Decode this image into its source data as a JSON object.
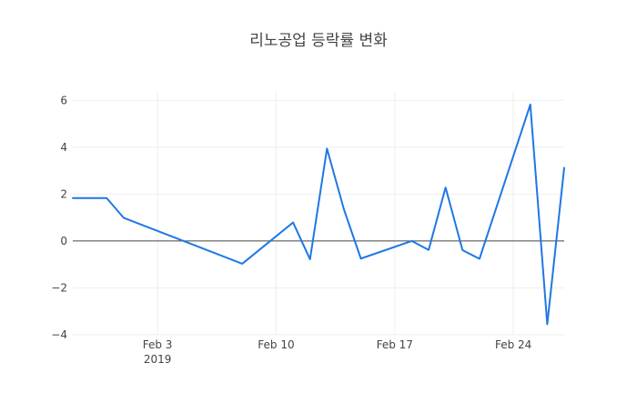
{
  "chart_data": {
    "type": "line",
    "title": "리노공업 등락률 변화",
    "x_tick_labels": [
      "Feb 3",
      "Feb 10",
      "Feb 17",
      "Feb 24"
    ],
    "x_tick_year": "2019",
    "y_ticks": [
      6,
      4,
      2,
      0,
      -2,
      -4
    ],
    "y_tick_labels": [
      "6",
      "4",
      "2",
      "0",
      "−2",
      "−4"
    ],
    "xlim": [
      "2019-01-29",
      "2019-02-27"
    ],
    "ylim": [
      -4,
      6.4
    ],
    "grid": true,
    "zero_line": true,
    "line_color": "#1f77e4",
    "series": [
      {
        "x": [
          "2019-01-29",
          "2019-01-31",
          "2019-02-01",
          "2019-02-08",
          "2019-02-11",
          "2019-02-12",
          "2019-02-13",
          "2019-02-14",
          "2019-02-15",
          "2019-02-18",
          "2019-02-19",
          "2019-02-20",
          "2019-02-21",
          "2019-02-22",
          "2019-02-25",
          "2019-02-26",
          "2019-02-27"
        ],
        "values": [
          1.83,
          1.83,
          0.99,
          -0.97,
          0.79,
          -0.78,
          3.94,
          1.35,
          -0.75,
          0.0,
          -0.38,
          2.28,
          -0.39,
          -0.76,
          5.82,
          -3.55,
          3.12
        ]
      }
    ]
  }
}
